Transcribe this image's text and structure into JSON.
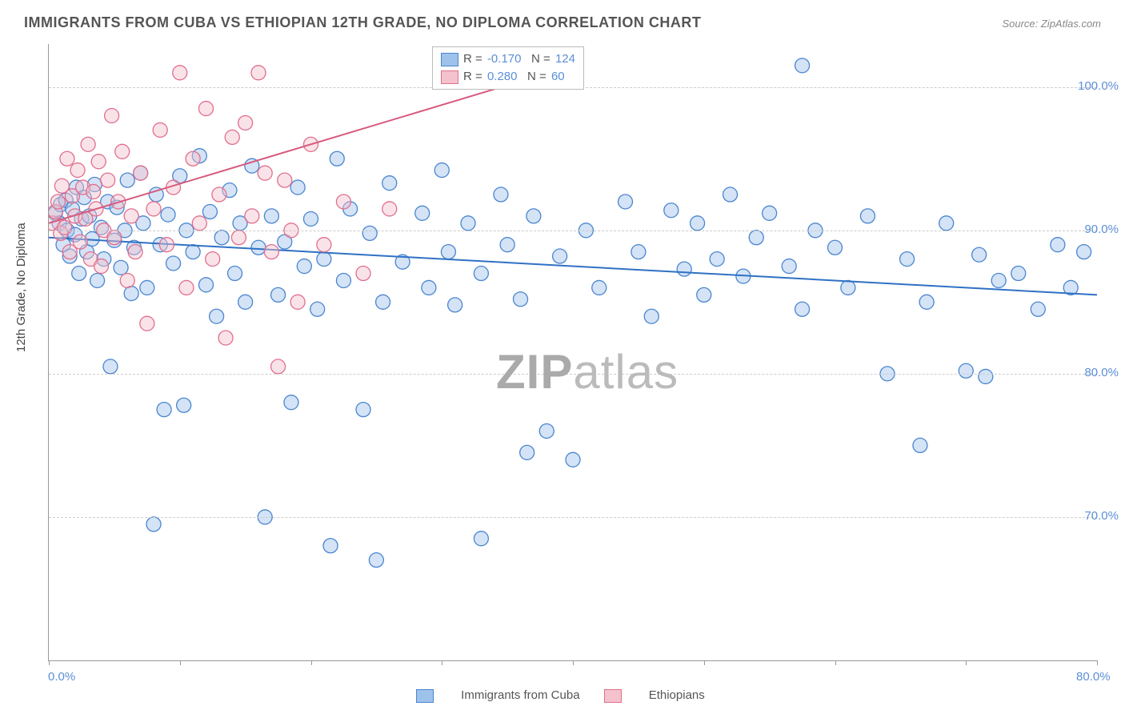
{
  "title": "IMMIGRANTS FROM CUBA VS ETHIOPIAN 12TH GRADE, NO DIPLOMA CORRELATION CHART",
  "source": "Source: ZipAtlas.com",
  "ylabel": "12th Grade, No Diploma",
  "watermark_bold": "ZIP",
  "watermark_rest": "atlas",
  "chart": {
    "type": "scatter",
    "xlim": [
      0,
      80
    ],
    "ylim": [
      60,
      103
    ],
    "xticks": [
      0,
      10,
      20,
      30,
      40,
      50,
      60,
      70,
      80
    ],
    "xtick_labels_shown": {
      "0": "0.0%",
      "80": "80.0%"
    },
    "yticks": [
      70,
      80,
      90,
      100
    ],
    "ytick_labels": [
      "70.0%",
      "80.0%",
      "90.0%",
      "100.0%"
    ],
    "grid_color": "#cccccc",
    "background_color": "#ffffff",
    "marker_radius": 9,
    "marker_opacity": 0.45,
    "series": [
      {
        "name": "Immigrants from Cuba",
        "fill": "#9fc2ea",
        "stroke": "#4a86cf",
        "R": "-0.170",
        "N": "124",
        "trend": {
          "x1": 0,
          "y1": 89.5,
          "x2": 80,
          "y2": 85.5,
          "color": "#2f71c4",
          "width": 2
        },
        "points": [
          [
            0.5,
            91.2
          ],
          [
            0.8,
            90.5
          ],
          [
            0.9,
            91.8
          ],
          [
            1.1,
            89.0
          ],
          [
            1.3,
            92.1
          ],
          [
            1.4,
            90.0
          ],
          [
            1.6,
            88.2
          ],
          [
            1.8,
            91.5
          ],
          [
            2.0,
            89.7
          ],
          [
            2.1,
            93.0
          ],
          [
            2.3,
            87.0
          ],
          [
            2.5,
            90.8
          ],
          [
            2.7,
            92.3
          ],
          [
            2.9,
            88.5
          ],
          [
            3.1,
            91.0
          ],
          [
            3.3,
            89.4
          ],
          [
            3.5,
            93.2
          ],
          [
            3.7,
            86.5
          ],
          [
            4.0,
            90.2
          ],
          [
            4.2,
            88.0
          ],
          [
            4.5,
            92.0
          ],
          [
            4.7,
            80.5
          ],
          [
            5.0,
            89.3
          ],
          [
            5.2,
            91.6
          ],
          [
            5.5,
            87.4
          ],
          [
            5.8,
            90.0
          ],
          [
            6.0,
            93.5
          ],
          [
            6.3,
            85.6
          ],
          [
            6.5,
            88.8
          ],
          [
            7.0,
            94.0
          ],
          [
            7.2,
            90.5
          ],
          [
            7.5,
            86.0
          ],
          [
            8.0,
            69.5
          ],
          [
            8.2,
            92.5
          ],
          [
            8.5,
            89.0
          ],
          [
            8.8,
            77.5
          ],
          [
            9.1,
            91.1
          ],
          [
            9.5,
            87.7
          ],
          [
            10.0,
            93.8
          ],
          [
            10.3,
            77.8
          ],
          [
            10.5,
            90.0
          ],
          [
            11.0,
            88.5
          ],
          [
            11.5,
            95.2
          ],
          [
            12.0,
            86.2
          ],
          [
            12.3,
            91.3
          ],
          [
            12.8,
            84.0
          ],
          [
            13.2,
            89.5
          ],
          [
            13.8,
            92.8
          ],
          [
            14.2,
            87.0
          ],
          [
            14.6,
            90.5
          ],
          [
            15.0,
            85.0
          ],
          [
            15.5,
            94.5
          ],
          [
            16.0,
            88.8
          ],
          [
            16.5,
            70.0
          ],
          [
            17.0,
            91.0
          ],
          [
            17.5,
            85.5
          ],
          [
            18.0,
            89.2
          ],
          [
            18.5,
            78.0
          ],
          [
            19.0,
            93.0
          ],
          [
            19.5,
            87.5
          ],
          [
            20.0,
            90.8
          ],
          [
            20.5,
            84.5
          ],
          [
            21.0,
            88.0
          ],
          [
            22.0,
            95.0
          ],
          [
            22.5,
            86.5
          ],
          [
            23.0,
            91.5
          ],
          [
            24.0,
            77.5
          ],
          [
            24.5,
            89.8
          ],
          [
            21.5,
            68.0
          ],
          [
            25.5,
            85.0
          ],
          [
            26.0,
            93.3
          ],
          [
            27.0,
            87.8
          ],
          [
            25.0,
            67.0
          ],
          [
            28.5,
            91.2
          ],
          [
            29.0,
            86.0
          ],
          [
            30.0,
            94.2
          ],
          [
            30.5,
            88.5
          ],
          [
            31.0,
            84.8
          ],
          [
            32.0,
            90.5
          ],
          [
            33.0,
            87.0
          ],
          [
            33.0,
            68.5
          ],
          [
            34.5,
            92.5
          ],
          [
            35.0,
            89.0
          ],
          [
            36.0,
            85.2
          ],
          [
            37.0,
            91.0
          ],
          [
            38.0,
            76.0
          ],
          [
            39.0,
            88.2
          ],
          [
            36.5,
            74.5
          ],
          [
            41.0,
            90.0
          ],
          [
            42.0,
            86.0
          ],
          [
            40.0,
            74.0
          ],
          [
            44.0,
            92.0
          ],
          [
            45.0,
            88.5
          ],
          [
            46.0,
            84.0
          ],
          [
            47.5,
            91.4
          ],
          [
            48.5,
            87.3
          ],
          [
            49.5,
            90.5
          ],
          [
            50.0,
            85.5
          ],
          [
            51.0,
            88.0
          ],
          [
            52.0,
            92.5
          ],
          [
            53.0,
            86.8
          ],
          [
            54.0,
            89.5
          ],
          [
            55.0,
            91.2
          ],
          [
            56.5,
            87.5
          ],
          [
            57.5,
            84.5
          ],
          [
            58.5,
            90.0
          ],
          [
            60.0,
            88.8
          ],
          [
            61.0,
            86.0
          ],
          [
            62.5,
            91.0
          ],
          [
            64.0,
            80.0
          ],
          [
            65.5,
            88.0
          ],
          [
            67.0,
            85.0
          ],
          [
            68.5,
            90.5
          ],
          [
            70.0,
            80.2
          ],
          [
            71.5,
            79.8
          ],
          [
            71.0,
            88.3
          ],
          [
            72.5,
            86.5
          ],
          [
            57.5,
            101.5
          ],
          [
            66.5,
            75.0
          ],
          [
            74.0,
            87.0
          ],
          [
            75.5,
            84.5
          ],
          [
            77.0,
            89.0
          ],
          [
            78.0,
            86.0
          ],
          [
            79.0,
            88.5
          ]
        ]
      },
      {
        "name": "Ethiopians",
        "fill": "#f3c2cc",
        "stroke": "#e06f8f",
        "R": "0.280",
        "N": "60",
        "trend": {
          "x1": 0,
          "y1": 90.5,
          "x2": 40,
          "y2": 101.5,
          "color": "#d85a7d",
          "width": 2
        },
        "points": [
          [
            0.3,
            90.5
          ],
          [
            0.5,
            91.3
          ],
          [
            0.7,
            92.0
          ],
          [
            0.9,
            89.8
          ],
          [
            1.0,
            93.1
          ],
          [
            1.2,
            90.2
          ],
          [
            1.4,
            95.0
          ],
          [
            1.6,
            88.5
          ],
          [
            1.8,
            92.4
          ],
          [
            2.0,
            91.0
          ],
          [
            2.2,
            94.2
          ],
          [
            2.4,
            89.2
          ],
          [
            2.6,
            93.0
          ],
          [
            2.8,
            90.8
          ],
          [
            3.0,
            96.0
          ],
          [
            3.2,
            88.0
          ],
          [
            3.4,
            92.7
          ],
          [
            3.6,
            91.5
          ],
          [
            3.8,
            94.8
          ],
          [
            4.0,
            87.5
          ],
          [
            4.2,
            90.0
          ],
          [
            4.5,
            93.5
          ],
          [
            4.8,
            98.0
          ],
          [
            5.0,
            89.5
          ],
          [
            5.3,
            92.0
          ],
          [
            5.6,
            95.5
          ],
          [
            6.0,
            86.5
          ],
          [
            6.3,
            91.0
          ],
          [
            6.6,
            88.5
          ],
          [
            7.0,
            94.0
          ],
          [
            7.5,
            83.5
          ],
          [
            8.0,
            91.5
          ],
          [
            8.5,
            97.0
          ],
          [
            9.0,
            89.0
          ],
          [
            9.5,
            93.0
          ],
          [
            10.0,
            101.0
          ],
          [
            10.5,
            86.0
          ],
          [
            11.0,
            95.0
          ],
          [
            11.5,
            90.5
          ],
          [
            12.0,
            98.5
          ],
          [
            12.5,
            88.0
          ],
          [
            13.0,
            92.5
          ],
          [
            13.5,
            82.5
          ],
          [
            14.0,
            96.5
          ],
          [
            14.5,
            89.5
          ],
          [
            15.0,
            97.5
          ],
          [
            15.5,
            91.0
          ],
          [
            16.0,
            101.0
          ],
          [
            16.5,
            94.0
          ],
          [
            17.0,
            88.5
          ],
          [
            17.5,
            80.5
          ],
          [
            18.0,
            93.5
          ],
          [
            18.5,
            90.0
          ],
          [
            19.0,
            85.0
          ],
          [
            20.0,
            96.0
          ],
          [
            21.0,
            89.0
          ],
          [
            22.5,
            92.0
          ],
          [
            24.0,
            87.0
          ],
          [
            26.0,
            91.5
          ],
          [
            30.5,
            101.0
          ]
        ]
      }
    ]
  },
  "legend_bottom": [
    {
      "label": "Immigrants from Cuba",
      "fill": "#9fc2ea",
      "stroke": "#4a86cf"
    },
    {
      "label": "Ethiopians",
      "fill": "#f3c2cc",
      "stroke": "#e06f8f"
    }
  ]
}
